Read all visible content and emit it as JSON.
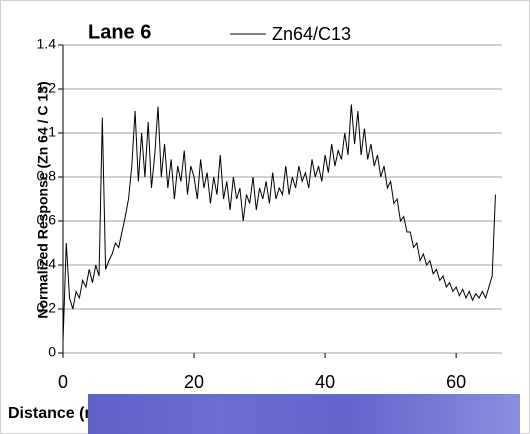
{
  "chart_data": {
    "type": "line",
    "title": "Lane 6",
    "x_label": "Distance (mm)",
    "y_label": "Normalized Response (Zn 64 / C 13)",
    "x": [
      0,
      0.5,
      1,
      1.5,
      2,
      2.5,
      3,
      3.5,
      4,
      4.5,
      5,
      5.5,
      6,
      6.5,
      7,
      7.5,
      8,
      8.5,
      9,
      9.5,
      10,
      10.5,
      11,
      11.5,
      12,
      12.5,
      13,
      13.5,
      14,
      14.5,
      15,
      15.5,
      16,
      16.5,
      17,
      17.5,
      18,
      18.5,
      19,
      19.5,
      20,
      20.5,
      21,
      21.5,
      22,
      22.5,
      23,
      23.5,
      24,
      24.5,
      25,
      25.5,
      26,
      26.5,
      27,
      27.5,
      28,
      28.5,
      29,
      29.5,
      30,
      30.5,
      31,
      31.5,
      32,
      32.5,
      33,
      33.5,
      34,
      34.5,
      35,
      35.5,
      36,
      36.5,
      37,
      37.5,
      38,
      38.5,
      39,
      39.5,
      40,
      40.5,
      41,
      41.5,
      42,
      42.5,
      43,
      43.5,
      44,
      44.5,
      45,
      45.5,
      46,
      46.5,
      47,
      47.5,
      48,
      48.5,
      49,
      49.5,
      50,
      50.5,
      51,
      51.5,
      52,
      52.5,
      53,
      53.5,
      54,
      54.5,
      55,
      55.5,
      56,
      56.5,
      57,
      57.5,
      58,
      58.5,
      59,
      59.5,
      60,
      60.5,
      61,
      61.5,
      62,
      62.5,
      63,
      63.5,
      64,
      64.5,
      65,
      65.5,
      66
    ],
    "series": [
      {
        "name": "Zn64/C13",
        "color": "#000000",
        "values": [
          0.05,
          0.5,
          0.25,
          0.2,
          0.28,
          0.25,
          0.33,
          0.3,
          0.38,
          0.32,
          0.4,
          0.35,
          1.07,
          0.38,
          0.42,
          0.45,
          0.5,
          0.48,
          0.55,
          0.62,
          0.7,
          0.85,
          1.1,
          0.78,
          1.0,
          0.8,
          1.05,
          0.75,
          0.9,
          1.12,
          0.8,
          0.95,
          0.75,
          0.88,
          0.7,
          0.85,
          0.78,
          0.92,
          0.72,
          0.85,
          0.8,
          0.7,
          0.88,
          0.75,
          0.82,
          0.68,
          0.8,
          0.72,
          0.9,
          0.7,
          0.78,
          0.65,
          0.8,
          0.7,
          0.75,
          0.6,
          0.72,
          0.68,
          0.8,
          0.65,
          0.75,
          0.7,
          0.78,
          0.68,
          0.82,
          0.7,
          0.75,
          0.72,
          0.85,
          0.72,
          0.8,
          0.75,
          0.85,
          0.78,
          0.82,
          0.75,
          0.88,
          0.8,
          0.85,
          0.78,
          0.9,
          0.82,
          0.95,
          0.85,
          0.92,
          0.88,
          1.0,
          0.9,
          1.13,
          0.95,
          1.1,
          0.9,
          1.02,
          0.88,
          0.95,
          0.85,
          0.9,
          0.8,
          0.85,
          0.75,
          0.78,
          0.68,
          0.7,
          0.6,
          0.62,
          0.55,
          0.55,
          0.48,
          0.5,
          0.42,
          0.45,
          0.4,
          0.42,
          0.36,
          0.38,
          0.33,
          0.35,
          0.3,
          0.32,
          0.28,
          0.3,
          0.26,
          0.29,
          0.25,
          0.28,
          0.24,
          0.27,
          0.25,
          0.28,
          0.25,
          0.3,
          0.35,
          0.72
        ]
      }
    ],
    "xlim": [
      0,
      67
    ],
    "xticks": [
      0,
      20,
      40,
      60
    ],
    "ylim": [
      0,
      1.4
    ],
    "yticks": [
      0,
      0.2,
      0.4,
      0.6,
      0.8,
      1,
      1.2,
      1.4
    ],
    "grid": true
  }
}
